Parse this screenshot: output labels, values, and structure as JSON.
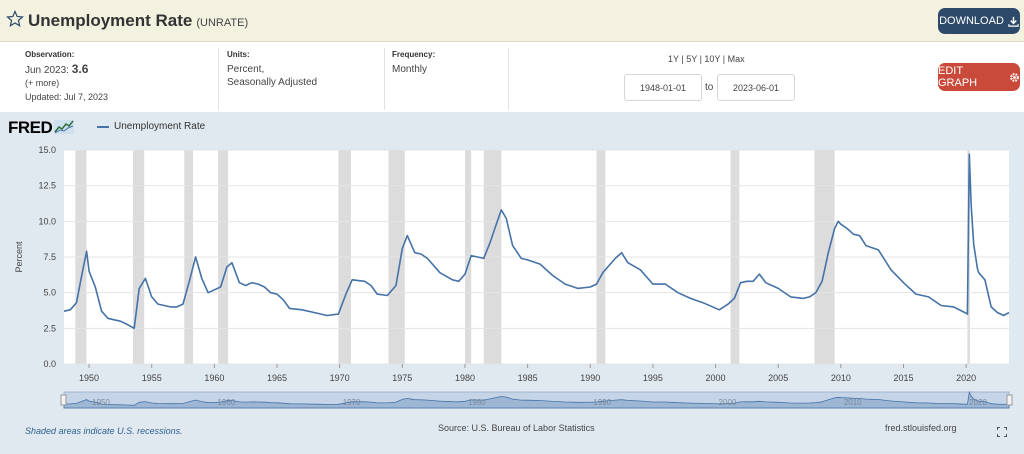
{
  "header": {
    "title": "Unemployment Rate",
    "series_id": "(UNRATE)",
    "download_label": "DOWNLOAD",
    "edit_label": "EDIT GRAPH"
  },
  "meta": {
    "observation_label": "Observation:",
    "observation_date": "Jun 2023:",
    "observation_value": "3.6",
    "more": "(+ more)",
    "updated": "Updated: Jul 7, 2023",
    "units_label": "Units:",
    "units_line1": "Percent,",
    "units_line2": "Seasonally Adjusted",
    "frequency_label": "Frequency:",
    "frequency_value": "Monthly",
    "range_1y": "1Y",
    "range_5y": "5Y",
    "range_10y": "10Y",
    "range_max": "Max",
    "start_date": "1948-01-01",
    "to_label": "to",
    "end_date": "2023-06-01"
  },
  "footer": {
    "recession_note": "Shaded areas indicate U.S. recessions.",
    "source": "Source: U.S. Bureau of Labor Statistics",
    "site": "fred.stlouisfed.org"
  },
  "logo_text": "FRED",
  "colors": {
    "series": "#4572a7",
    "recession": "#dcdcdc",
    "plot_bg": "#ffffff",
    "chart_bg": "#e1e9f0"
  },
  "chart_data": {
    "type": "line",
    "title": "",
    "xlabel": "",
    "ylabel": "Percent",
    "xlim": [
      1948,
      2023.42
    ],
    "ylim": [
      0,
      15
    ],
    "yticks": [
      "0.0",
      "2.5",
      "5.0",
      "7.5",
      "10.0",
      "12.5",
      "15.0"
    ],
    "xticks": [
      "1950",
      "1955",
      "1960",
      "1965",
      "1970",
      "1975",
      "1980",
      "1985",
      "1990",
      "1995",
      "2000",
      "2005",
      "2010",
      "2015",
      "2020"
    ],
    "navigator_labels": [
      "1950",
      "1960",
      "1970",
      "1980",
      "1990",
      "2000",
      "2010",
      "2020"
    ],
    "grid": true,
    "legend": "top-left",
    "recessions": [
      [
        1948.9,
        1949.8
      ],
      [
        1953.5,
        1954.4
      ],
      [
        1957.6,
        1958.3
      ],
      [
        1960.3,
        1961.1
      ],
      [
        1969.9,
        1970.9
      ],
      [
        1973.9,
        1975.2
      ],
      [
        1980.0,
        1980.5
      ],
      [
        1981.5,
        1982.9
      ],
      [
        1990.5,
        1991.2
      ],
      [
        2001.2,
        2001.9
      ],
      [
        2007.9,
        2009.5
      ],
      [
        2020.1,
        2020.3
      ]
    ],
    "series": [
      {
        "name": "Unemployment Rate",
        "x": [
          1948.0,
          1948.5,
          1949.0,
          1949.5,
          1949.8,
          1950.0,
          1950.5,
          1951.0,
          1951.5,
          1952.0,
          1952.5,
          1953.0,
          1953.6,
          1954.0,
          1954.5,
          1955.0,
          1955.5,
          1956.0,
          1956.5,
          1957.0,
          1957.5,
          1958.0,
          1958.5,
          1959.0,
          1959.5,
          1960.0,
          1960.5,
          1961.0,
          1961.4,
          1962.0,
          1962.5,
          1963.0,
          1963.5,
          1964.0,
          1964.5,
          1965.0,
          1965.5,
          1966.0,
          1967.0,
          1968.0,
          1969.0,
          1969.9,
          1970.5,
          1971.0,
          1972.0,
          1972.5,
          1973.0,
          1973.8,
          1974.5,
          1975.0,
          1975.4,
          1976.0,
          1976.5,
          1977.0,
          1978.0,
          1979.0,
          1979.5,
          1980.0,
          1980.5,
          1981.0,
          1981.5,
          1982.0,
          1982.5,
          1982.9,
          1983.3,
          1983.8,
          1984.5,
          1985.0,
          1986.0,
          1987.0,
          1988.0,
          1989.0,
          1990.0,
          1990.5,
          1991.0,
          1991.5,
          1992.0,
          1992.5,
          1993.0,
          1994.0,
          1995.0,
          1996.0,
          1997.0,
          1998.0,
          1999.0,
          2000.3,
          2001.0,
          2001.5,
          2002.0,
          2002.5,
          2003.0,
          2003.5,
          2004.0,
          2005.0,
          2006.0,
          2007.0,
          2007.5,
          2008.0,
          2008.5,
          2009.0,
          2009.5,
          2009.8,
          2010.0,
          2010.5,
          2011.0,
          2011.5,
          2012.0,
          2013.0,
          2014.0,
          2015.0,
          2016.0,
          2017.0,
          2018.0,
          2019.0,
          2019.9,
          2020.1,
          2020.25,
          2020.4,
          2020.6,
          2020.9,
          2021.0,
          2021.5,
          2022.0,
          2022.5,
          2023.0,
          2023.42
        ],
        "values": [
          3.7,
          3.8,
          4.3,
          6.6,
          7.9,
          6.5,
          5.4,
          3.7,
          3.2,
          3.1,
          3.0,
          2.8,
          2.5,
          5.3,
          6.0,
          4.7,
          4.2,
          4.1,
          4.0,
          4.0,
          4.2,
          5.8,
          7.5,
          6.0,
          5.0,
          5.2,
          5.4,
          6.8,
          7.1,
          5.7,
          5.5,
          5.7,
          5.6,
          5.4,
          5.0,
          4.9,
          4.5,
          3.9,
          3.8,
          3.6,
          3.4,
          3.5,
          4.9,
          5.9,
          5.8,
          5.5,
          4.9,
          4.8,
          5.5,
          8.1,
          9.0,
          7.8,
          7.7,
          7.4,
          6.4,
          5.9,
          5.8,
          6.3,
          7.6,
          7.5,
          7.4,
          8.5,
          9.8,
          10.8,
          10.2,
          8.3,
          7.4,
          7.3,
          7.0,
          6.2,
          5.6,
          5.3,
          5.4,
          5.6,
          6.4,
          6.9,
          7.4,
          7.8,
          7.1,
          6.6,
          5.6,
          5.6,
          5.0,
          4.6,
          4.3,
          3.8,
          4.2,
          4.6,
          5.7,
          5.8,
          5.8,
          6.3,
          5.7,
          5.3,
          4.7,
          4.6,
          4.7,
          5.0,
          5.8,
          7.8,
          9.5,
          10.0,
          9.8,
          9.5,
          9.1,
          9.0,
          8.3,
          8.0,
          6.6,
          5.7,
          4.9,
          4.7,
          4.1,
          4.0,
          3.6,
          3.5,
          14.7,
          11.1,
          8.4,
          6.7,
          6.4,
          5.9,
          4.0,
          3.6,
          3.4,
          3.6
        ]
      }
    ]
  }
}
